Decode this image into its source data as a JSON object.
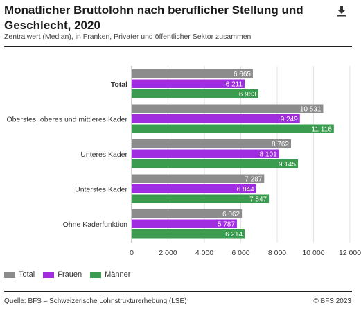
{
  "title": "Monatlicher Bruttolohn nach beruflicher Stellung und Geschlecht, 2020",
  "subtitle": "Zentralwert (Median), in Franken, Privater und öffentlicher Sektor zusammen",
  "download_icon": "download-icon",
  "source": "Quelle: BFS – Schweizerische Lohnstrukturerhebung (LSE)",
  "copyright": "© BFS 2023",
  "legend": [
    {
      "label": "Total",
      "color": "#8c8c8c"
    },
    {
      "label": "Frauen",
      "color": "#a12de0"
    },
    {
      "label": "Männer",
      "color": "#3b9b4f"
    }
  ],
  "chart_data": {
    "type": "bar",
    "orientation": "horizontal",
    "categories": [
      "Total",
      "Oberstes, oberes und mittleres Kader",
      "Unteres Kader",
      "Unterstes Kader",
      "Ohne Kaderfunktion"
    ],
    "category_labels": [
      "Total",
      "Oberstes, oberes und mittleres Kader",
      "Unteres Kader",
      "Unterstes Kader",
      "Ohne Kaderfunktion"
    ],
    "bold_category": "Total",
    "series": [
      {
        "name": "Total",
        "color": "#8c8c8c",
        "values": [
          6665,
          10531,
          8762,
          7287,
          6062
        ],
        "labels": [
          "6 665",
          "10 531",
          "8 762",
          "7 287",
          "6 062"
        ]
      },
      {
        "name": "Frauen",
        "color": "#a12de0",
        "values": [
          6211,
          9249,
          8101,
          6844,
          5787
        ],
        "labels": [
          "6 211",
          "9 249",
          "8 101",
          "6 844",
          "5 787"
        ]
      },
      {
        "name": "Männer",
        "color": "#3b9b4f",
        "values": [
          6963,
          11116,
          9145,
          7547,
          6214
        ],
        "labels": [
          "6 963",
          "11 116",
          "9 145",
          "7 547",
          "6 214"
        ]
      }
    ],
    "xlim": [
      0,
      12000
    ],
    "xticks": [
      0,
      2000,
      4000,
      6000,
      8000,
      10000,
      12000
    ],
    "xtick_labels": [
      "0",
      "2 000",
      "4 000",
      "6 000",
      "8 000",
      "10 000",
      "12 000"
    ],
    "grid": true,
    "legend_position": "bottom-left"
  }
}
